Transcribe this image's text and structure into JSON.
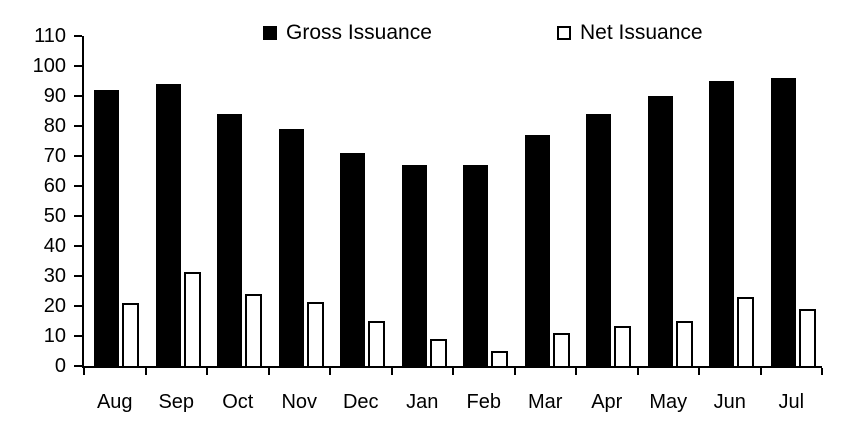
{
  "chart_data": {
    "type": "bar",
    "title": "",
    "categories": [
      "Aug",
      "Sep",
      "Oct",
      "Nov",
      "Dec",
      "Jan",
      "Feb",
      "Mar",
      "Apr",
      "May",
      "Jun",
      "Jul"
    ],
    "series": [
      {
        "name": "Gross Issuance",
        "marker": "filled-black-square",
        "color": "#000000",
        "values": [
          92,
          94,
          84,
          79,
          71,
          67,
          67,
          77,
          84,
          90,
          95,
          96
        ]
      },
      {
        "name": "Net Issuance",
        "marker": "open-white-square",
        "color": "#ffffff",
        "border_color": "#000000",
        "values": [
          21,
          31.5,
          24,
          21.5,
          15,
          9,
          5,
          11,
          13.5,
          15,
          23,
          19
        ]
      }
    ],
    "xlabel": "",
    "ylabel": "",
    "ylim": [
      0,
      110
    ],
    "yticks": [
      0,
      10,
      20,
      30,
      40,
      50,
      60,
      70,
      80,
      90,
      100,
      110
    ],
    "grid": false,
    "legend_position": "top"
  }
}
